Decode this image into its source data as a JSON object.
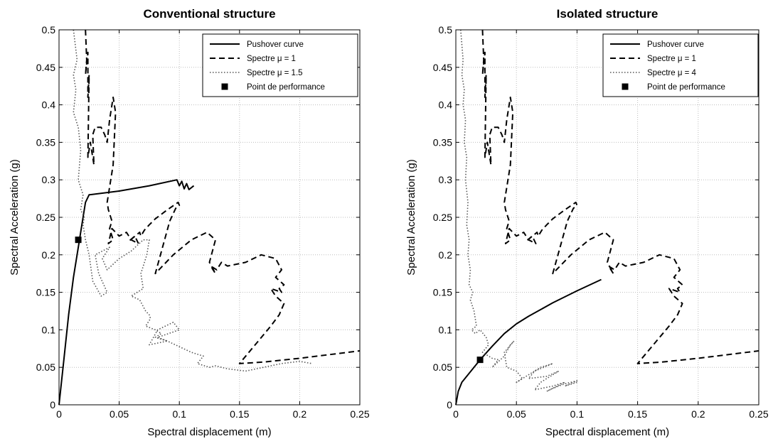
{
  "chart_data": [
    {
      "type": "line",
      "title": "Conventional structure",
      "xlabel": "Spectral displacement (m)",
      "ylabel": "Spectral Acceleration (g)",
      "xlim": [
        0,
        0.25
      ],
      "ylim": [
        0,
        0.5
      ],
      "xticks": [
        "0",
        "0.05",
        "0.1",
        "0.15",
        "0.2",
        "0.25"
      ],
      "xtick_values": [
        0,
        0.05,
        0.1,
        0.15,
        0.2,
        0.25
      ],
      "yticks": [
        "0",
        "0.05",
        "0.1",
        "0.15",
        "0.2",
        "0.25",
        "0.3",
        "0.35",
        "0.4",
        "0.45",
        "0.5"
      ],
      "ytick_values": [
        0,
        0.05,
        0.1,
        0.15,
        0.2,
        0.25,
        0.3,
        0.35,
        0.4,
        0.45,
        0.5
      ],
      "grid": true,
      "legend_position": "top-right",
      "series": [
        {
          "name": "Pushover curve",
          "style": "solid",
          "x": [
            0,
            0.004,
            0.008,
            0.012,
            0.016,
            0.019,
            0.022,
            0.025,
            0.05,
            0.075,
            0.098,
            0.1,
            0.102,
            0.104,
            0.106,
            0.108,
            0.112
          ],
          "y": [
            0,
            0.06,
            0.12,
            0.17,
            0.21,
            0.24,
            0.27,
            0.28,
            0.285,
            0.292,
            0.3,
            0.292,
            0.298,
            0.288,
            0.295,
            0.287,
            0.292
          ]
        },
        {
          "name": "Spectre μ = 1",
          "style": "dashed",
          "x": [
            0.022,
            0.023,
            0.022,
            0.024,
            0.024,
            0.025,
            0.024,
            0.026,
            0.029,
            0.028,
            0.03,
            0.035,
            0.038,
            0.04,
            0.042,
            0.045,
            0.047,
            0.045,
            0.04,
            0.041,
            0.044,
            0.042,
            0.045,
            0.041,
            0.044,
            0.05,
            0.056,
            0.06,
            0.066,
            0.063,
            0.058,
            0.067,
            0.068,
            0.071,
            0.075,
            0.08,
            0.09,
            0.099,
            0.1,
            0.097,
            0.092,
            0.08,
            0.095,
            0.11,
            0.123,
            0.13,
            0.125,
            0.13,
            0.126,
            0.131,
            0.135,
            0.14,
            0.155,
            0.168,
            0.18,
            0.185,
            0.18,
            0.187,
            0.183,
            0.185,
            0.176,
            0.18,
            0.187,
            0.183,
            0.176,
            0.15,
            0.17,
            0.2,
            0.23,
            0.25
          ],
          "y": [
            0.5,
            0.46,
            0.44,
            0.47,
            0.41,
            0.44,
            0.33,
            0.35,
            0.32,
            0.36,
            0.37,
            0.37,
            0.36,
            0.35,
            0.38,
            0.41,
            0.39,
            0.32,
            0.27,
            0.26,
            0.245,
            0.235,
            0.22,
            0.215,
            0.235,
            0.225,
            0.23,
            0.22,
            0.215,
            0.225,
            0.218,
            0.23,
            0.225,
            0.233,
            0.24,
            0.248,
            0.26,
            0.27,
            0.266,
            0.262,
            0.245,
            0.175,
            0.2,
            0.22,
            0.23,
            0.22,
            0.19,
            0.175,
            0.185,
            0.18,
            0.19,
            0.185,
            0.19,
            0.2,
            0.195,
            0.18,
            0.17,
            0.16,
            0.155,
            0.15,
            0.155,
            0.145,
            0.135,
            0.12,
            0.105,
            0.055,
            0.057,
            0.062,
            0.068,
            0.072
          ]
        },
        {
          "name": "Spectre μ = 1.5",
          "style": "dotted",
          "x": [
            0.012,
            0.015,
            0.012,
            0.014,
            0.012,
            0.016,
            0.018,
            0.016,
            0.02,
            0.018,
            0.021,
            0.02,
            0.022,
            0.025,
            0.028,
            0.035,
            0.04,
            0.033,
            0.03,
            0.042,
            0.036,
            0.04,
            0.05,
            0.06,
            0.07,
            0.075,
            0.073,
            0.068,
            0.07,
            0.06,
            0.067,
            0.072,
            0.075,
            0.076,
            0.072,
            0.08,
            0.085,
            0.08,
            0.09,
            0.075,
            0.082,
            0.095,
            0.1,
            0.082,
            0.09,
            0.11,
            0.12,
            0.115,
            0.125,
            0.13,
            0.14,
            0.155,
            0.17,
            0.185,
            0.2,
            0.21
          ],
          "y": [
            0.5,
            0.46,
            0.44,
            0.42,
            0.39,
            0.37,
            0.34,
            0.3,
            0.28,
            0.26,
            0.25,
            0.24,
            0.22,
            0.2,
            0.165,
            0.145,
            0.15,
            0.175,
            0.2,
            0.21,
            0.195,
            0.18,
            0.195,
            0.205,
            0.22,
            0.22,
            0.2,
            0.175,
            0.155,
            0.145,
            0.14,
            0.125,
            0.12,
            0.115,
            0.105,
            0.1,
            0.095,
            0.09,
            0.085,
            0.08,
            0.1,
            0.11,
            0.1,
            0.09,
            0.085,
            0.07,
            0.065,
            0.055,
            0.05,
            0.052,
            0.048,
            0.045,
            0.05,
            0.055,
            0.058,
            0.055
          ]
        },
        {
          "name": "Point de performance",
          "style": "marker",
          "x": [
            0.016
          ],
          "y": [
            0.22
          ]
        }
      ]
    },
    {
      "type": "line",
      "title": "Isolated structure",
      "xlabel": "Spectral displacement (m)",
      "ylabel": "Spectral Acceleration (g)",
      "xlim": [
        0,
        0.25
      ],
      "ylim": [
        0,
        0.5
      ],
      "xticks": [
        "0",
        "0.05",
        "0.1",
        "0.15",
        "0.2",
        "0.25"
      ],
      "xtick_values": [
        0,
        0.05,
        0.1,
        0.15,
        0.2,
        0.25
      ],
      "yticks": [
        "0",
        "0.05",
        "0.1",
        "0.15",
        "0.2",
        "0.25",
        "0.3",
        "0.35",
        "0.4",
        "0.45",
        "0.5"
      ],
      "ytick_values": [
        0,
        0.05,
        0.1,
        0.15,
        0.2,
        0.25,
        0.3,
        0.35,
        0.4,
        0.45,
        0.5
      ],
      "grid": true,
      "legend_position": "top-right",
      "series": [
        {
          "name": "Pushover curve",
          "style": "solid",
          "x": [
            0,
            0.002,
            0.005,
            0.01,
            0.02,
            0.03,
            0.04,
            0.05,
            0.06,
            0.08,
            0.1,
            0.12
          ],
          "y": [
            0,
            0.018,
            0.03,
            0.04,
            0.06,
            0.078,
            0.095,
            0.108,
            0.118,
            0.136,
            0.152,
            0.167
          ]
        },
        {
          "name": "Spectre μ = 1",
          "style": "dashed",
          "x": [
            0.022,
            0.023,
            0.022,
            0.024,
            0.024,
            0.025,
            0.024,
            0.026,
            0.029,
            0.028,
            0.03,
            0.035,
            0.038,
            0.04,
            0.042,
            0.045,
            0.047,
            0.045,
            0.04,
            0.041,
            0.044,
            0.042,
            0.045,
            0.041,
            0.044,
            0.05,
            0.056,
            0.06,
            0.066,
            0.063,
            0.058,
            0.067,
            0.068,
            0.071,
            0.075,
            0.08,
            0.09,
            0.099,
            0.1,
            0.097,
            0.092,
            0.08,
            0.095,
            0.11,
            0.123,
            0.13,
            0.125,
            0.13,
            0.126,
            0.131,
            0.135,
            0.14,
            0.155,
            0.168,
            0.18,
            0.185,
            0.18,
            0.187,
            0.183,
            0.185,
            0.176,
            0.18,
            0.187,
            0.183,
            0.176,
            0.15,
            0.17,
            0.2,
            0.23,
            0.25
          ],
          "y": [
            0.5,
            0.46,
            0.44,
            0.47,
            0.41,
            0.44,
            0.33,
            0.35,
            0.32,
            0.36,
            0.37,
            0.37,
            0.36,
            0.35,
            0.38,
            0.41,
            0.39,
            0.32,
            0.27,
            0.26,
            0.245,
            0.235,
            0.22,
            0.215,
            0.235,
            0.225,
            0.23,
            0.22,
            0.215,
            0.225,
            0.218,
            0.23,
            0.225,
            0.233,
            0.24,
            0.248,
            0.26,
            0.27,
            0.266,
            0.262,
            0.245,
            0.175,
            0.2,
            0.22,
            0.23,
            0.22,
            0.19,
            0.175,
            0.185,
            0.18,
            0.19,
            0.185,
            0.19,
            0.2,
            0.195,
            0.18,
            0.17,
            0.16,
            0.155,
            0.15,
            0.155,
            0.145,
            0.135,
            0.12,
            0.105,
            0.055,
            0.057,
            0.062,
            0.068,
            0.072
          ]
        },
        {
          "name": "Spectre μ = 4",
          "style": "dotted",
          "x": [
            0.004,
            0.006,
            0.005,
            0.007,
            0.006,
            0.008,
            0.007,
            0.009,
            0.008,
            0.01,
            0.009,
            0.011,
            0.01,
            0.012,
            0.011,
            0.014,
            0.012,
            0.015,
            0.017,
            0.013,
            0.016,
            0.02,
            0.025,
            0.027,
            0.022,
            0.03,
            0.035,
            0.03,
            0.04,
            0.045,
            0.048,
            0.04,
            0.042,
            0.05,
            0.055,
            0.05,
            0.06,
            0.07,
            0.08,
            0.065,
            0.06,
            0.075,
            0.085,
            0.07,
            0.065,
            0.08,
            0.09,
            0.075,
            0.08,
            0.09,
            0.1,
            0.09,
            0.1
          ],
          "y": [
            0.5,
            0.46,
            0.44,
            0.42,
            0.4,
            0.38,
            0.35,
            0.33,
            0.3,
            0.27,
            0.24,
            0.22,
            0.2,
            0.18,
            0.16,
            0.15,
            0.14,
            0.125,
            0.105,
            0.1,
            0.095,
            0.1,
            0.09,
            0.08,
            0.07,
            0.062,
            0.06,
            0.05,
            0.065,
            0.08,
            0.085,
            0.07,
            0.05,
            0.045,
            0.035,
            0.03,
            0.04,
            0.05,
            0.055,
            0.045,
            0.035,
            0.038,
            0.045,
            0.03,
            0.02,
            0.025,
            0.03,
            0.018,
            0.022,
            0.028,
            0.032,
            0.025,
            0.03
          ]
        },
        {
          "name": "Point de performance",
          "style": "marker",
          "x": [
            0.02
          ],
          "y": [
            0.06
          ]
        }
      ]
    }
  ]
}
